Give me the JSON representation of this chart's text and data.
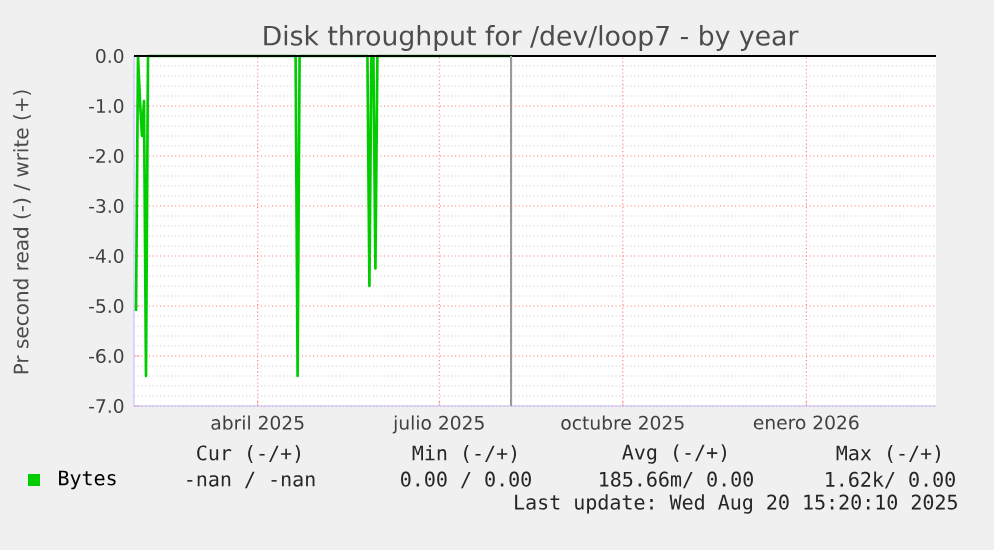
{
  "chart_data": {
    "type": "line",
    "title": "Disk throughput for /dev/loop7 - by year",
    "ylabel": "Pr second read (-) / write (+)",
    "x": [
      "2025-02-13",
      "2025-02-14",
      "2025-02-15",
      "2025-02-16",
      "2025-02-17",
      "2025-02-18",
      "2025-02-19",
      "2025-05-04",
      "2025-05-05",
      "2025-05-06",
      "2025-06-09",
      "2025-06-10",
      "2025-06-11",
      "2025-06-12",
      "2025-06-13",
      "2025-06-14",
      "2025-08-20"
    ],
    "series": [
      {
        "name": "Bytes",
        "color": "#00cc00",
        "values": [
          -5.1,
          0,
          -0.9,
          -1.6,
          -0.9,
          -6.4,
          0,
          0,
          -6.4,
          0,
          0,
          -4.6,
          0,
          0,
          -4.25,
          0,
          0
        ]
      }
    ],
    "xlim": [
      "2025-02-12",
      "2026-03-21"
    ],
    "xticks": [
      {
        "value": "2025-04-15",
        "label": "abril 2025"
      },
      {
        "value": "2025-07-15",
        "label": "julio 2025"
      },
      {
        "value": "2025-10-15",
        "label": "octubre 2025"
      },
      {
        "value": "2026-01-15",
        "label": "enero 2026"
      }
    ],
    "ylim": [
      -7,
      0
    ],
    "yticks": [
      {
        "value": -7,
        "label": "-7.0"
      },
      {
        "value": -6,
        "label": "-6.0"
      },
      {
        "value": -5,
        "label": "-5.0"
      },
      {
        "value": -4,
        "label": "-4.0"
      },
      {
        "value": -3,
        "label": "-3.0"
      },
      {
        "value": -2,
        "label": "-2.0"
      },
      {
        "value": -1,
        "label": "-1.0"
      },
      {
        "value": 0,
        "label": "0.0"
      }
    ],
    "ref_lines": [
      {
        "axis": "x",
        "value": "2025-08-20",
        "color": "#999999"
      }
    ],
    "grid": true,
    "legend": "bottom",
    "annotations": [
      "Cur (-/+)",
      "Min (-/+)",
      "Avg (-/+)",
      "Max (-/+)",
      "-nan / -nan",
      "0.00 / 0.00",
      "185.66m/ 0.00",
      "1.62k/ 0.00",
      "Last update: Wed Aug 20 15:20:10 2025"
    ]
  }
}
